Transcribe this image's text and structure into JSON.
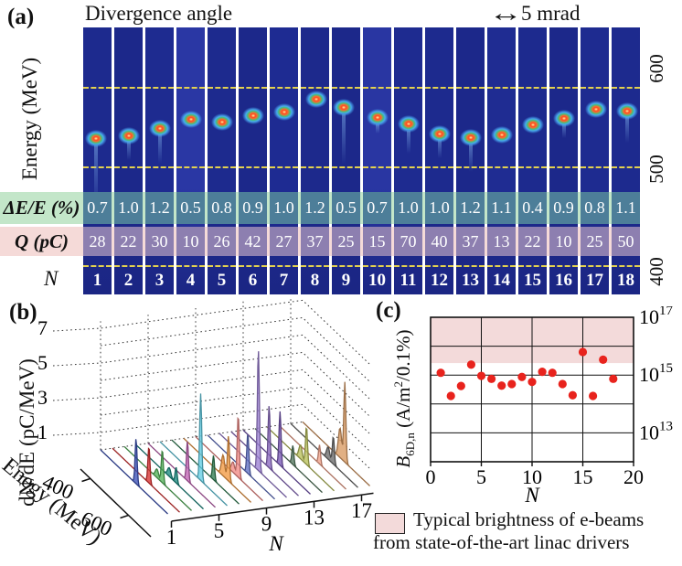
{
  "panel_a": {
    "label": "(a)",
    "title": "Divergence angle",
    "scale_arrow": "↔",
    "scale_label": "5 mrad",
    "y_axis_label": "Energy (MeV)",
    "right_ticks": [
      "600",
      "500",
      "400"
    ],
    "row_labels": {
      "de": "ΔE/E (%)",
      "q": "Q (pC)",
      "n": "N"
    },
    "colors": {
      "strip_base": "#1d2a8e",
      "dash_yellow": "#e3d14f",
      "de_band_bg": "#c3e6c9",
      "de_cell": "#4d7e99",
      "q_band_bg": "#f5dad8",
      "q_cell": "#8d7fb0"
    },
    "strip_styles": {
      "shades": [
        "#1d2a8e",
        "#1c288a",
        "#1e2b90",
        "#2a37a4",
        "#1d2a8e",
        "#1c288a",
        "#1e2b92",
        "#1d298c",
        "#1c288a",
        "#2936a2",
        "#1e2b90",
        "#1d2a8e",
        "#1c288a",
        "#1f2c92",
        "#1d2a8e",
        "#1c288a",
        "#1e2b90",
        "#1d2a8e"
      ],
      "tails": [
        70,
        20,
        32,
        0,
        0,
        0,
        0,
        0,
        55,
        10,
        25,
        20,
        30,
        0,
        0,
        15,
        0,
        28
      ],
      "spot_x": [
        0.45,
        0.5,
        0.5,
        0.5,
        0.5,
        0.5,
        0.5,
        0.55,
        0.42,
        0.5,
        0.5,
        0.5,
        0.5,
        0.5,
        0.5,
        0.5,
        0.55,
        0.55
      ]
    }
  },
  "panel_b_label": "(b)",
  "panel_c_label": "(c)",
  "chart_data": [
    {
      "id": "a",
      "type": "table",
      "title": "Divergence angle",
      "row_headers": [
        "ΔE/E (%)",
        "Q (pC)",
        "N"
      ],
      "N": [
        1,
        2,
        3,
        4,
        5,
        6,
        7,
        8,
        9,
        10,
        11,
        12,
        13,
        14,
        15,
        16,
        17,
        18
      ],
      "dE_percent": [
        "0.7",
        "1.0",
        "1.2",
        "0.5",
        "0.8",
        "0.9",
        "1.0",
        "1.2",
        "0.5",
        "0.7",
        "1.0",
        "1.0",
        "1.2",
        "1.1",
        "0.4",
        "0.9",
        "0.8",
        "1.1"
      ],
      "Q_pC": [
        "28",
        "22",
        "30",
        "10",
        "26",
        "42",
        "27",
        "37",
        "25",
        "15",
        "70",
        "40",
        "37",
        "13",
        "22",
        "10",
        "25",
        "50"
      ],
      "spot_energy_MeV": [
        534,
        538,
        547,
        558,
        555,
        562,
        567,
        583,
        572,
        560,
        552,
        540,
        535,
        539,
        551,
        559,
        570,
        568
      ],
      "energy_axis_ticks_MeV": [
        600,
        500,
        400
      ],
      "scale_bar": "5 mrad"
    },
    {
      "id": "b",
      "type": "area",
      "variant": "3d-waterfall",
      "zlabel": "dN/dE (pC/MeV)",
      "xlabel": "Enegy (MeV)",
      "ylabel": "N",
      "z_ticks": [
        1,
        3,
        5,
        7
      ],
      "energy_ticks": [
        400,
        600
      ],
      "n_ticks": [
        1,
        5,
        9,
        13,
        17
      ],
      "energy_range": [
        350,
        700
      ],
      "z_range": [
        0,
        7.5
      ],
      "series": [
        {
          "n": 1,
          "color": "#3c52b8",
          "peak_energy": 535,
          "peak_height": 2.6,
          "sec": null
        },
        {
          "n": 2,
          "color": "#d93030",
          "peak_energy": 540,
          "peak_height": 2.1,
          "sec": null
        },
        {
          "n": 3,
          "color": "#55b35a",
          "peak_energy": 548,
          "peak_height": 1.9,
          "sec": [
            520,
            0.5
          ]
        },
        {
          "n": 4,
          "color": "#1b8a80",
          "peak_energy": 558,
          "peak_height": 0.9,
          "sec": [
            522,
            0.5
          ]
        },
        {
          "n": 5,
          "color": "#c263b5",
          "peak_energy": 555,
          "peak_height": 2.3,
          "sec": null
        },
        {
          "n": 6,
          "color": "#63cde4",
          "peak_energy": 562,
          "peak_height": 5.0,
          "sec": null
        },
        {
          "n": 7,
          "color": "#2f7d52",
          "peak_energy": 567,
          "peak_height": 1.4,
          "sec": null
        },
        {
          "n": 8,
          "color": "#f29a42",
          "peak_energy": 583,
          "peak_height": 2.6,
          "sec": [
            555,
            1.2
          ]
        },
        {
          "n": 9,
          "color": "#f28a85",
          "peak_energy": 572,
          "peak_height": 3.6,
          "sec": [
            545,
            0.6
          ]
        },
        {
          "n": 10,
          "color": "#5f6fc4",
          "peak_energy": 560,
          "peak_height": 2.3,
          "sec": null
        },
        {
          "n": 11,
          "color": "#9b7fd4",
          "peak_energy": 553,
          "peak_height": 7.0,
          "sec": null
        },
        {
          "n": 12,
          "color": "#8a68c0",
          "peak_energy": 547,
          "peak_height": 3.6,
          "sec": null
        },
        {
          "n": 13,
          "color": "#7857b5",
          "peak_energy": 542,
          "peak_height": 3.1,
          "sec": null
        },
        {
          "n": 14,
          "color": "#55795f",
          "peak_energy": 547,
          "peak_height": 1.1,
          "sec": null
        },
        {
          "n": 15,
          "color": "#b9c05a",
          "peak_energy": 556,
          "peak_height": 2.2,
          "sec": [
            525,
            0.8
          ]
        },
        {
          "n": 16,
          "color": "#f0a088",
          "peak_energy": 562,
          "peak_height": 1.1,
          "sec": null
        },
        {
          "n": 17,
          "color": "#6a6a6a",
          "peak_energy": 572,
          "peak_height": 1.6,
          "sec": [
            545,
            0.7
          ]
        },
        {
          "n": 18,
          "color": "#d89a62",
          "peak_energy": 570,
          "peak_height": 4.6,
          "sec": [
            545,
            1.7
          ]
        }
      ]
    },
    {
      "id": "c",
      "type": "scatter",
      "xlabel": "N",
      "ylabel": "B6D,n (A/m2/0.1%)",
      "xlim": [
        0,
        20
      ],
      "x_ticks": [
        0,
        5,
        10,
        15,
        20
      ],
      "y_exponent_ticks": [
        17,
        15,
        13
      ],
      "ylim_exponents": [
        12,
        17
      ],
      "band": {
        "from": 2600000000000000.0,
        "to": 1e+17,
        "color": "#f3dada"
      },
      "point_color": "#e8231d",
      "x": [
        1,
        2,
        3,
        4,
        5,
        6,
        7,
        8,
        9,
        10,
        11,
        12,
        13,
        14,
        15,
        16,
        17,
        18
      ],
      "y": [
        1200000000000000.0,
        190000000000000.0,
        420000000000000.0,
        2300000000000000.0,
        940000000000000.0,
        740000000000000.0,
        430000000000000.0,
        490000000000000.0,
        860000000000000.0,
        580000000000000.0,
        1300000000000000.0,
        1200000000000000.0,
        490000000000000.0,
        200000000000000.0,
        6300000000000000.0,
        190000000000000.0,
        3400000000000000.0,
        740000000000000.0
      ]
    }
  ],
  "panel_c_ylabel": {
    "b": "B",
    "sub": "6D,n",
    "mid": " (A/m",
    "sup": "2",
    "end": "/0.1%)"
  },
  "legend": {
    "line1": "Typical brightness of e-beams",
    "line2": "from state-of-the-art linac drivers"
  }
}
